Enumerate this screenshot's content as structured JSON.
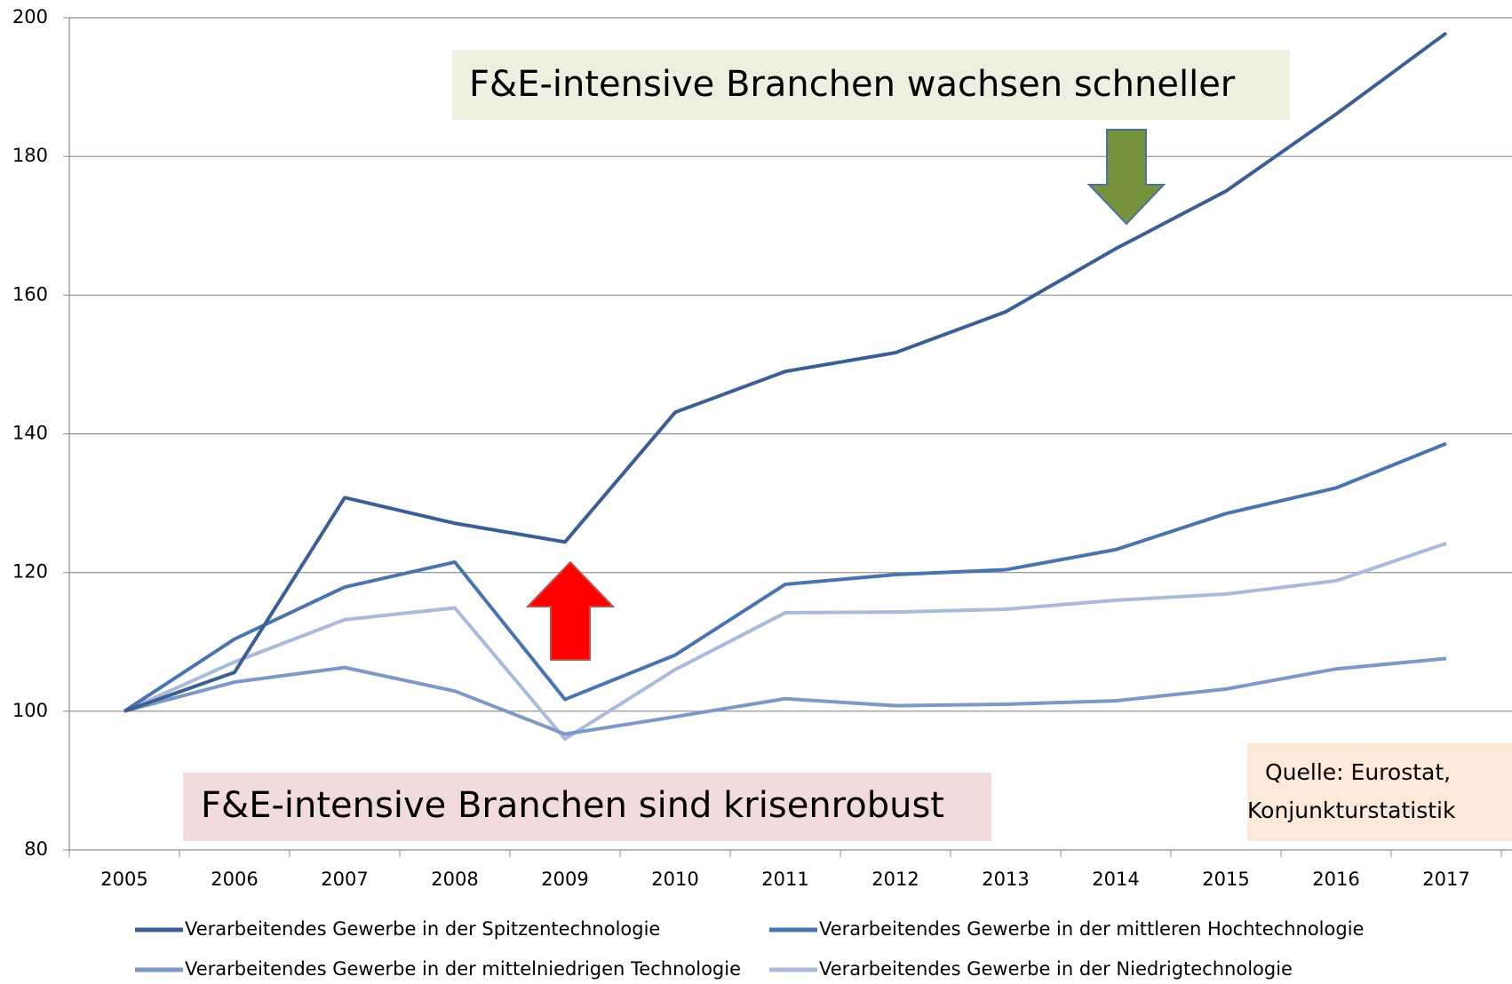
{
  "chart_data": {
    "type": "line",
    "categories": [
      "2005",
      "2006",
      "2007",
      "2008",
      "2009",
      "2010",
      "2011",
      "2012",
      "2013",
      "2014",
      "2015",
      "2016",
      "2017"
    ],
    "series": [
      {
        "name": "Verarbeitendes Gewerbe in der Spitzentechnologie",
        "color": "#3b5f93",
        "values": [
          100,
          105.6,
          130.8,
          127.1,
          124.4,
          143.1,
          149.0,
          151.7,
          157.6,
          166.7,
          175.0,
          186.1,
          197.8
        ]
      },
      {
        "name": "Verarbeitendes Gewerbe in der mittleren Hochtechnologie",
        "color": "#4a74ae",
        "values": [
          100,
          110.4,
          117.9,
          121.5,
          101.7,
          108.1,
          118.3,
          119.7,
          120.4,
          123.3,
          128.5,
          132.2,
          138.6
        ]
      },
      {
        "name": "Verarbeitendes Gewerbe in der mittelniedrigen Technologie",
        "color": "#7d98c6",
        "values": [
          100,
          104.2,
          106.3,
          102.9,
          96.7,
          99.2,
          101.8,
          100.8,
          101.0,
          101.5,
          103.2,
          106.1,
          107.6
        ]
      },
      {
        "name": "Verarbeitendes Gewerbe in der Niedrigtechnologie",
        "color": "#a9badb",
        "values": [
          100,
          107.1,
          113.2,
          114.9,
          96.0,
          106.0,
          114.2,
          114.3,
          114.7,
          116.0,
          116.9,
          118.8,
          124.2
        ]
      }
    ],
    "ylim": [
      80,
      200
    ],
    "yticks": [
      80,
      100,
      120,
      140,
      160,
      180,
      200
    ],
    "grid": true,
    "annotations": [
      "F&E-intensive Branchen wachsen schneller",
      "F&E-intensive Branchen sind krisenrobust"
    ],
    "source": [
      "Quelle: Eurostat,",
      "Konjunkturstatistik"
    ]
  }
}
